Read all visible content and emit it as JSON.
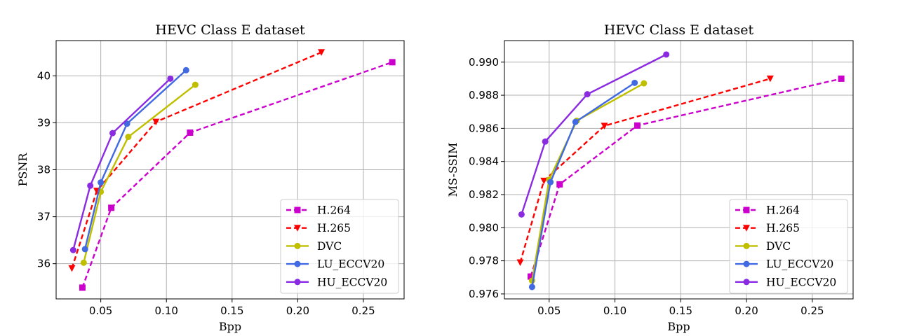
{
  "chart_data": [
    {
      "type": "line",
      "title": "HEVC Class E dataset",
      "xlabel": "Bpp",
      "ylabel": "PSNR",
      "xlim": [
        0.016,
        0.281
      ],
      "ylim": [
        35.25,
        40.75
      ],
      "xticks": [
        0.05,
        0.1,
        0.15,
        0.2,
        0.25
      ],
      "xtick_labels": [
        "0.05",
        "0.10",
        "0.15",
        "0.20",
        "0.25"
      ],
      "yticks": [
        36,
        37,
        38,
        39,
        40
      ],
      "ytick_labels": [
        "36",
        "37",
        "38",
        "39",
        "40"
      ],
      "grid": true,
      "legend_position": "bottom-right",
      "series": [
        {
          "name": "H.264",
          "color": "#cc00cc",
          "dash": "dashed",
          "marker": "square",
          "x": [
            0.036,
            0.058,
            0.118,
            0.272
          ],
          "y": [
            35.49,
            37.19,
            38.79,
            40.29
          ]
        },
        {
          "name": "H.265",
          "color": "#ff0000",
          "dash": "dashed",
          "marker": "triangle-down",
          "x": [
            0.028,
            0.047,
            0.092,
            0.218
          ],
          "y": [
            35.9,
            37.55,
            39.02,
            40.5
          ]
        },
        {
          "name": "DVC",
          "color": "#bfbf00",
          "dash": "solid",
          "marker": "circle",
          "x": [
            0.037,
            0.05,
            0.071,
            0.122
          ],
          "y": [
            36.02,
            37.53,
            38.7,
            39.81
          ]
        },
        {
          "name": "LU_ECCV20",
          "color": "#4169e1",
          "dash": "solid",
          "marker": "circle",
          "x": [
            0.038,
            0.05,
            0.07,
            0.115
          ],
          "y": [
            36.31,
            37.73,
            38.98,
            40.12
          ]
        },
        {
          "name": "HU_ECCV20",
          "color": "#8a2be2",
          "dash": "solid",
          "marker": "circle",
          "x": [
            0.029,
            0.042,
            0.059,
            0.103
          ],
          "y": [
            36.29,
            37.66,
            38.78,
            39.94
          ]
        }
      ]
    },
    {
      "type": "line",
      "title": "HEVC Class E dataset",
      "xlabel": "Bpp",
      "ylabel": "MS-SSIM",
      "xlim": [
        0.016,
        0.281
      ],
      "ylim": [
        0.9757,
        0.9913
      ],
      "xticks": [
        0.05,
        0.1,
        0.15,
        0.2,
        0.25
      ],
      "xtick_labels": [
        "0.05",
        "0.10",
        "0.15",
        "0.20",
        "0.25"
      ],
      "yticks": [
        0.976,
        0.978,
        0.98,
        0.982,
        0.984,
        0.986,
        0.988,
        0.99
      ],
      "ytick_labels": [
        "0.976",
        "0.978",
        "0.980",
        "0.982",
        "0.984",
        "0.986",
        "0.988",
        "0.990"
      ],
      "grid": true,
      "legend_position": "bottom-right",
      "series": [
        {
          "name": "H.264",
          "color": "#cc00cc",
          "dash": "dashed",
          "marker": "square",
          "x": [
            0.036,
            0.058,
            0.117,
            0.272
          ],
          "y": [
            0.97705,
            0.98262,
            0.98617,
            0.989
          ]
        },
        {
          "name": "H.265",
          "color": "#ff0000",
          "dash": "dashed",
          "marker": "triangle-down",
          "x": [
            0.028,
            0.046,
            0.092,
            0.218
          ],
          "y": [
            0.9779,
            0.98283,
            0.98615,
            0.989
          ]
        },
        {
          "name": "DVC",
          "color": "#bfbf00",
          "dash": "solid",
          "marker": "circle",
          "x": [
            0.037,
            0.05,
            0.071,
            0.122
          ],
          "y": [
            0.9768,
            0.9829,
            0.98646,
            0.98872
          ]
        },
        {
          "name": "LU_ECCV20",
          "color": "#4169e1",
          "dash": "solid",
          "marker": "circle",
          "x": [
            0.037,
            0.051,
            0.07,
            0.115
          ],
          "y": [
            0.97642,
            0.98275,
            0.98639,
            0.98875
          ]
        },
        {
          "name": "HU_ECCV20",
          "color": "#8a2be2",
          "dash": "solid",
          "marker": "circle",
          "x": [
            0.029,
            0.047,
            0.079,
            0.139
          ],
          "y": [
            0.9808,
            0.9852,
            0.98806,
            0.99046
          ]
        }
      ]
    }
  ]
}
